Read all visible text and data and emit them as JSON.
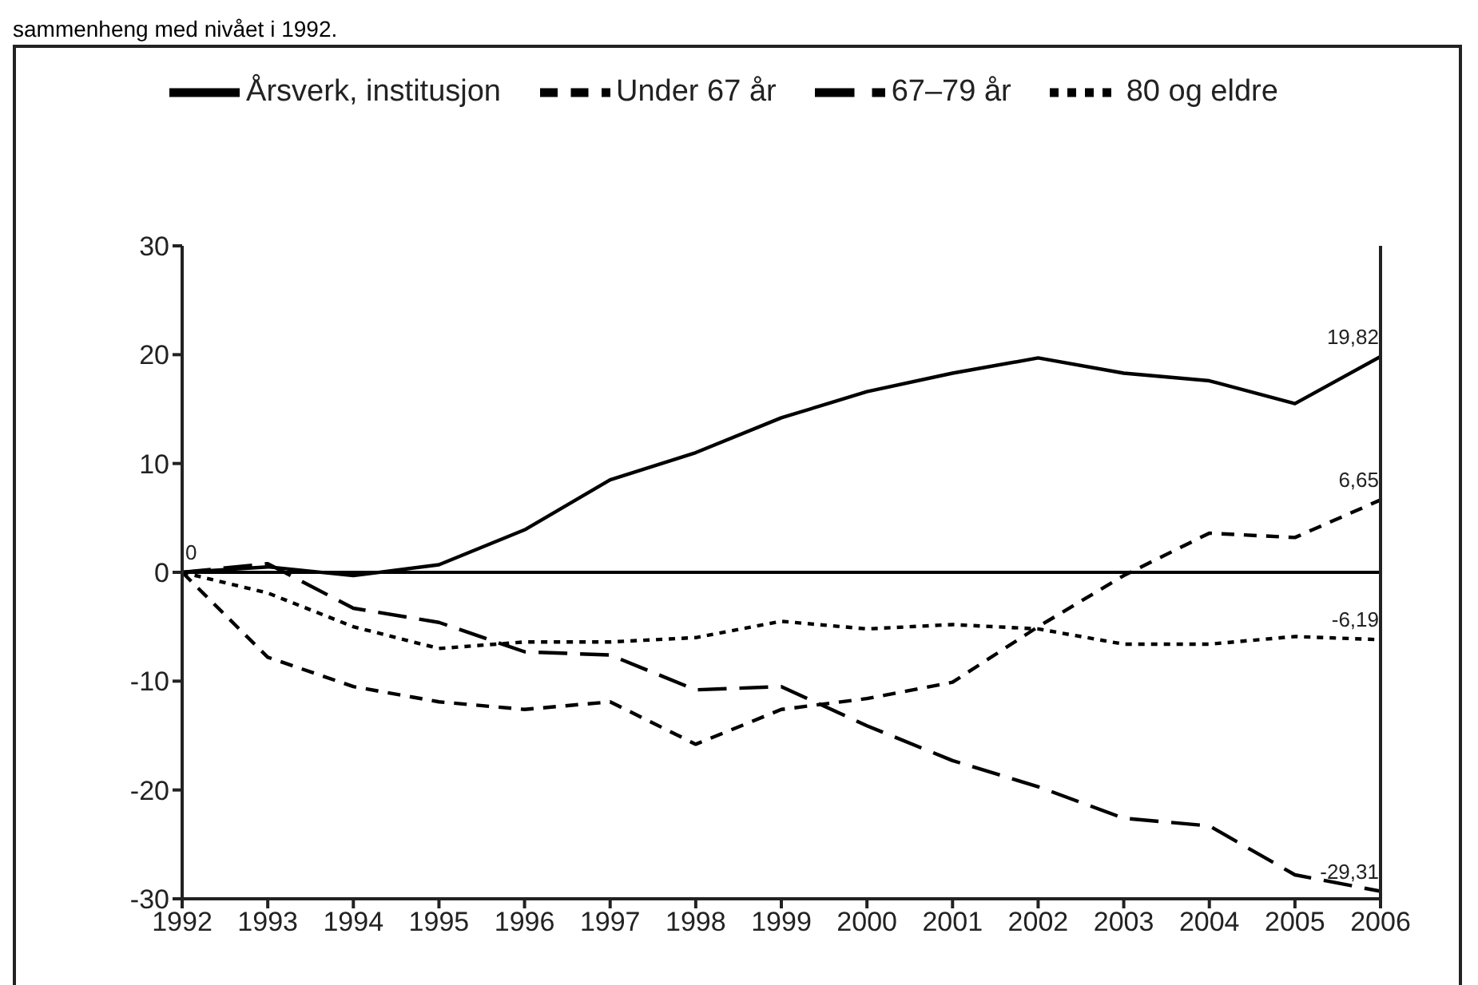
{
  "chart_data": {
    "type": "line",
    "subtitle": "sammenheng med nivået i 1992.",
    "x": [
      1992,
      1993,
      1994,
      1995,
      1996,
      1997,
      1998,
      1999,
      2000,
      2001,
      2002,
      2003,
      2004,
      2005,
      2006
    ],
    "xlim": [
      1992,
      2006
    ],
    "xticks": [
      1992,
      1993,
      1994,
      1995,
      1996,
      1997,
      1998,
      1999,
      2000,
      2001,
      2002,
      2003,
      2004,
      2005,
      2006
    ],
    "ylim": [
      -30,
      30
    ],
    "yticks": [
      -30,
      -20,
      -10,
      0,
      10,
      20,
      30
    ],
    "legend": "top",
    "marker": "none",
    "ref_lines": [
      {
        "axis": "y",
        "value": 0,
        "color": "#000000"
      }
    ],
    "series": [
      {
        "name": "Årsverk, institusjon",
        "color": "#000000",
        "line_style": "solid",
        "values": [
          0,
          0.5,
          -0.3,
          0.7,
          3.9,
          8.5,
          11,
          14.2,
          16.6,
          18.3,
          19.7,
          18.3,
          17.6,
          15.5,
          19.82
        ],
        "value_labels": [
          "0",
          null,
          null,
          null,
          null,
          null,
          null,
          null,
          null,
          null,
          null,
          null,
          null,
          null,
          "19,82"
        ]
      },
      {
        "name": "Under 67 år",
        "color": "#000000",
        "line_style": "dashed",
        "values": [
          0,
          -7.8,
          -10.5,
          -11.9,
          -12.6,
          -11.9,
          -15.8,
          -12.6,
          -11.6,
          -10.1,
          -5,
          -0.3,
          3.6,
          3.2,
          6.65
        ],
        "value_labels": [
          null,
          null,
          null,
          null,
          null,
          null,
          null,
          null,
          null,
          null,
          null,
          null,
          null,
          null,
          "6,65"
        ]
      },
      {
        "name": "67–79 år",
        "color": "#000000",
        "line_style": "longdash",
        "values": [
          0,
          0.8,
          -3.3,
          -4.6,
          -7.3,
          -7.6,
          -10.8,
          -10.5,
          -14.1,
          -17.3,
          -19.7,
          -22.6,
          -23.3,
          -27.8,
          -29.31
        ],
        "value_labels": [
          null,
          null,
          null,
          null,
          null,
          null,
          null,
          null,
          null,
          null,
          null,
          null,
          null,
          null,
          "-29,31"
        ]
      },
      {
        "name": "80 og eldre",
        "color": "#000000",
        "line_style": "dotted",
        "values": [
          0,
          -1.9,
          -5,
          -7,
          -6.4,
          -6.4,
          -6,
          -4.5,
          -5.2,
          -4.8,
          -5.2,
          -6.6,
          -6.6,
          -5.9,
          -6.19
        ],
        "value_labels": [
          null,
          null,
          null,
          null,
          null,
          null,
          null,
          null,
          null,
          null,
          null,
          null,
          null,
          null,
          "-6,19"
        ]
      }
    ]
  }
}
